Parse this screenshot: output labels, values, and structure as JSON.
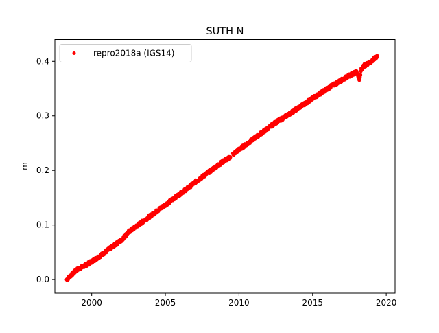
{
  "chart_data": {
    "type": "scatter",
    "title": "SUTH N",
    "xlabel": "",
    "ylabel": "m",
    "xlim": [
      1997.5,
      2020.6
    ],
    "ylim": [
      -0.025,
      0.44
    ],
    "x_ticks": [
      2000,
      2005,
      2010,
      2015,
      2020
    ],
    "y_ticks": [
      0.0,
      0.1,
      0.2,
      0.3,
      0.4
    ],
    "x_tick_labels": [
      "2000",
      "2005",
      "2010",
      "2015",
      "2020"
    ],
    "y_tick_labels": [
      "0.0",
      "0.1",
      "0.2",
      "0.3",
      "0.4"
    ],
    "grid": false,
    "legend": {
      "placement": "top-left",
      "entries": [
        "repro2018a (IGS14)"
      ]
    },
    "colors": {
      "series": "#ff0000",
      "axes": "#000000",
      "background": "#ffffff"
    },
    "series": [
      {
        "name": "repro2018a (IGS14)",
        "marker": "dot",
        "x": [
          1998.3,
          1998.6,
          1999.0,
          1999.5,
          2000.0,
          2000.5,
          2001.0,
          2001.5,
          2002.0,
          2002.5,
          2003.0,
          2003.5,
          2004.0,
          2004.5,
          2005.0,
          2005.5,
          2006.0,
          2006.5,
          2007.0,
          2007.5,
          2008.0,
          2008.5,
          2009.0,
          2009.3,
          2009.7,
          2010.0,
          2010.5,
          2011.0,
          2011.5,
          2012.0,
          2012.5,
          2013.0,
          2013.5,
          2014.0,
          2014.5,
          2015.0,
          2015.5,
          2016.0,
          2016.5,
          2017.0,
          2017.5,
          2018.0,
          2018.2,
          2018.3,
          2018.5,
          2019.0,
          2019.4
        ],
        "y": [
          0.0,
          0.008,
          0.018,
          0.025,
          0.033,
          0.042,
          0.052,
          0.062,
          0.072,
          0.087,
          0.097,
          0.107,
          0.117,
          0.127,
          0.137,
          0.147,
          0.157,
          0.167,
          0.178,
          0.188,
          0.198,
          0.208,
          0.218,
          0.222,
          0.232,
          0.238,
          0.248,
          0.258,
          0.268,
          0.278,
          0.288,
          0.296,
          0.305,
          0.314,
          0.323,
          0.332,
          0.341,
          0.35,
          0.358,
          0.366,
          0.374,
          0.381,
          0.366,
          0.386,
          0.392,
          0.4,
          0.41
        ]
      }
    ]
  }
}
